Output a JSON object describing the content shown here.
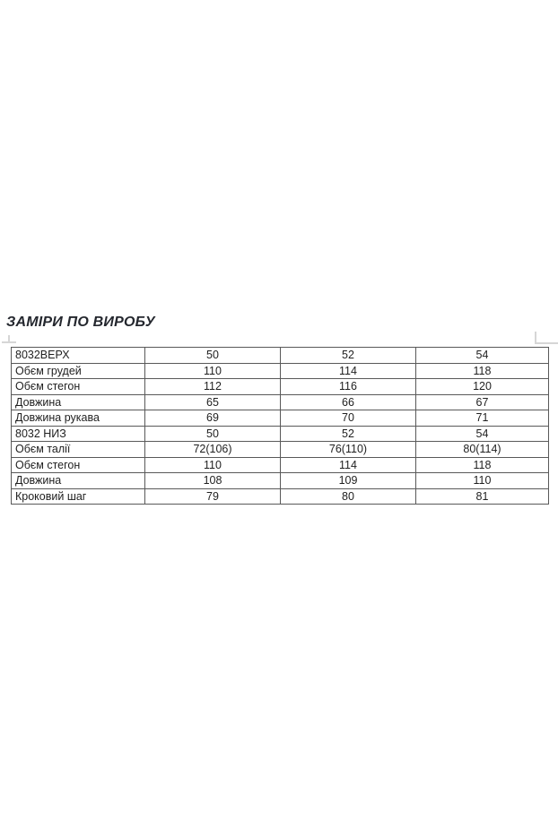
{
  "page": {
    "title": "ЗАМІРИ ПО ВИРОБУ"
  },
  "colors": {
    "text": "#1f1f1f",
    "title_text": "#24272e",
    "table_border": "#595959",
    "artifact_mark": "#d6d6d6",
    "background": "#ffffff"
  },
  "table": {
    "columns": 4,
    "rows": [
      {
        "label": "8032ВЕРХ",
        "values": [
          "50",
          "52",
          "54"
        ]
      },
      {
        "label": "Обєм грудей",
        "values": [
          "110",
          "114",
          "118"
        ]
      },
      {
        "label": "Обєм стегон",
        "values": [
          "112",
          "116",
          "120"
        ]
      },
      {
        "label": "Довжина",
        "values": [
          "65",
          "66",
          "67"
        ]
      },
      {
        "label": "Довжина рукава",
        "values": [
          "69",
          "70",
          "71"
        ]
      },
      {
        "label": "8032 НИЗ",
        "values": [
          "50",
          "52",
          "54"
        ]
      },
      {
        "label": "Обєм талії",
        "values": [
          "72(106)",
          "76(110)",
          "80(114)"
        ]
      },
      {
        "label": "Обєм стегон",
        "values": [
          "110",
          "114",
          "118"
        ]
      },
      {
        "label": "Довжина",
        "values": [
          "108",
          "109",
          "110"
        ]
      },
      {
        "label": "Кроковий шаг",
        "values": [
          "79",
          "80",
          "81"
        ]
      }
    ]
  }
}
